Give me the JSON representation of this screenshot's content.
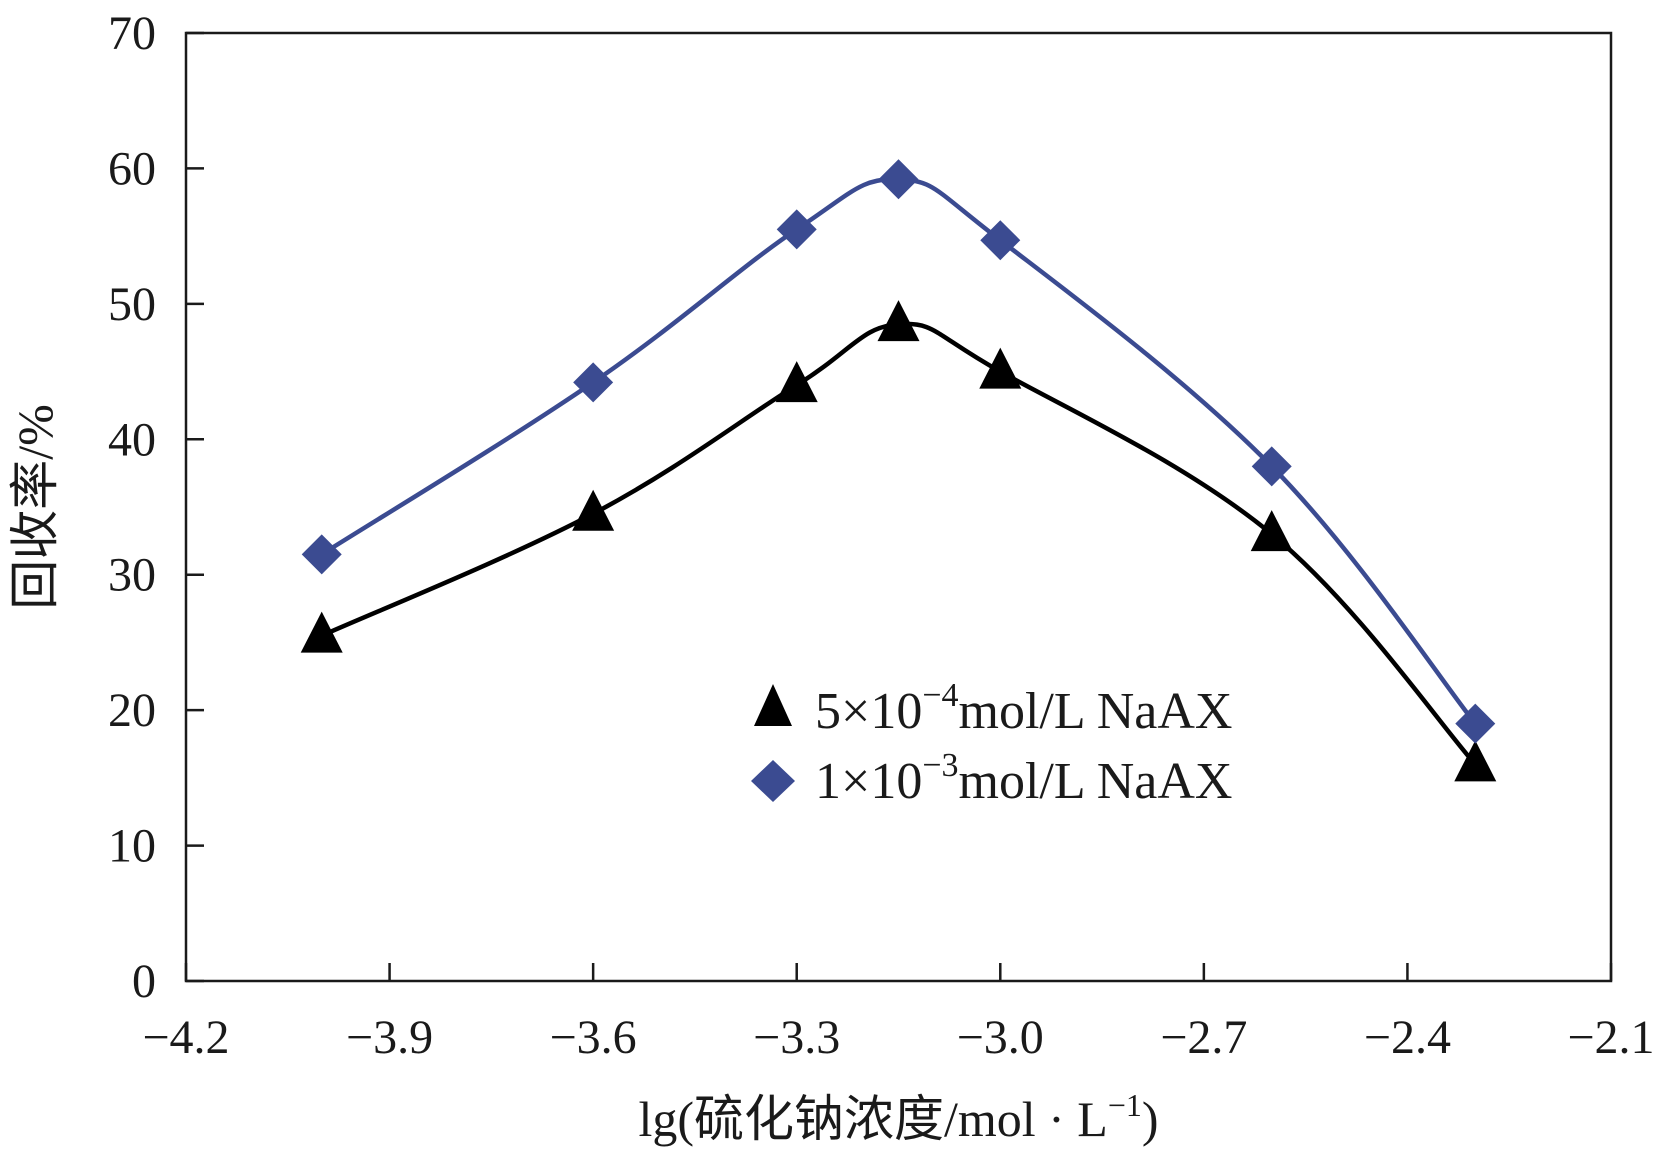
{
  "chart_data": {
    "type": "line",
    "title": "",
    "xlabel": "lg(硫化钠浓度/mol · L",
    "xlabel_sup": "−1",
    "xlabel_close": ")",
    "ylabel": "回收率/%",
    "xlim": [
      -4.2,
      -2.1
    ],
    "ylim": [
      0,
      70
    ],
    "xticks": [
      -4.2,
      -3.9,
      -3.6,
      -3.3,
      -3.0,
      -2.7,
      -2.4,
      -2.1
    ],
    "xtick_labels": [
      "−4.2",
      "−3.9",
      "−3.6",
      "−3.3",
      "−3.0",
      "−2.7",
      "−2.4",
      "−2.1"
    ],
    "yticks": [
      0,
      10,
      20,
      30,
      40,
      50,
      60,
      70
    ],
    "ytick_labels": [
      "0",
      "10",
      "20",
      "30",
      "40",
      "50",
      "60",
      "70"
    ],
    "grid": false,
    "legend_position": "center-right",
    "series": [
      {
        "name": "5×10−4mol/L NaAX",
        "legend_prefix": "5×10",
        "legend_sup": "−4",
        "legend_suffix": "mol/L NaAX",
        "marker": "triangle",
        "color": "#000000",
        "x": [
          -4.0,
          -3.6,
          -3.3,
          -3.15,
          -3.0,
          -2.6,
          -2.3
        ],
        "y": [
          25.5,
          34.5,
          44,
          48.5,
          45,
          33,
          16
        ]
      },
      {
        "name": "1×10−3mol/L NaAX",
        "legend_prefix": "1×10",
        "legend_sup": "−3",
        "legend_suffix": "mol/L NaAX",
        "marker": "diamond",
        "color": "#3b4b91",
        "x": [
          -4.0,
          -3.6,
          -3.3,
          -3.15,
          -3.0,
          -2.6,
          -2.3
        ],
        "y": [
          31.5,
          44.2,
          55.5,
          59.2,
          54.7,
          38,
          19
        ]
      }
    ]
  }
}
